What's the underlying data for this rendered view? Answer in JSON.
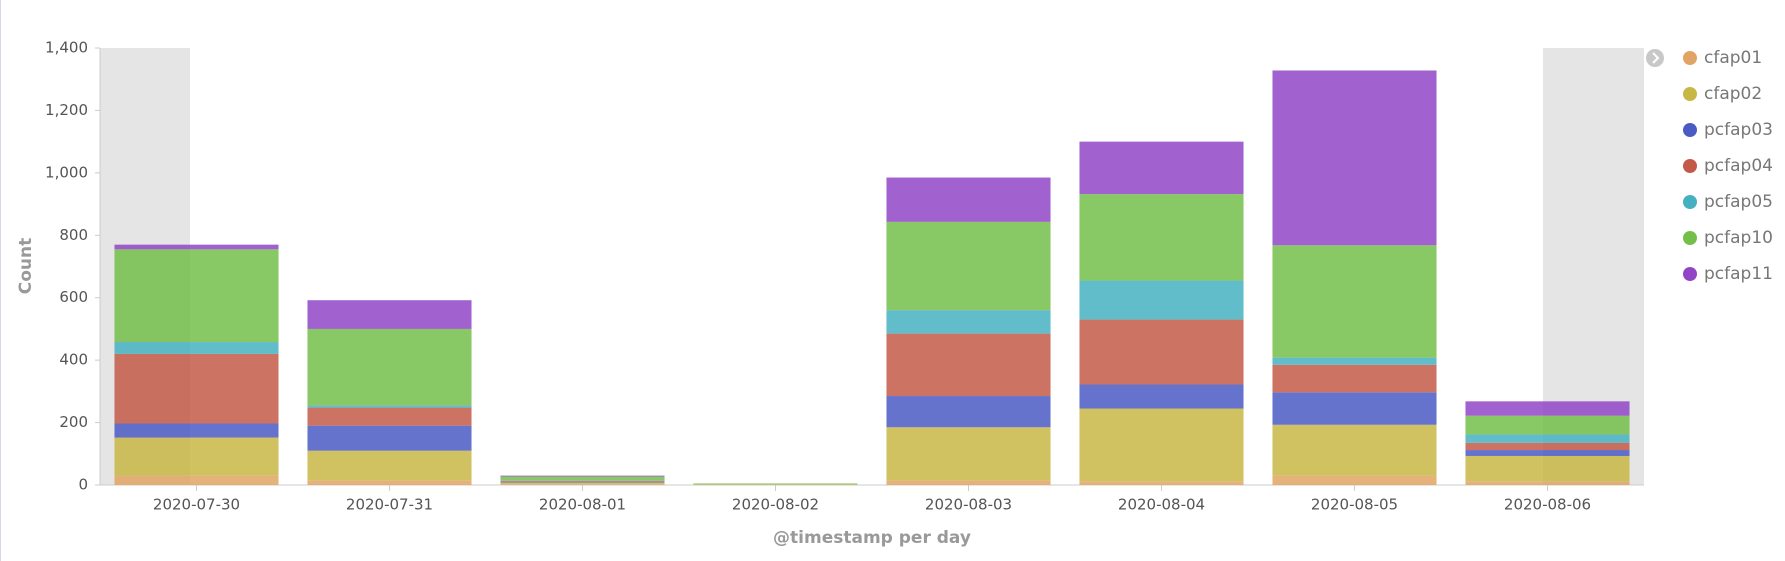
{
  "chart_data": {
    "type": "stacked_bar",
    "y_label": "Count",
    "x_label": "@timestamp per day",
    "categories": [
      "2020-07-30",
      "2020-07-31",
      "2020-08-01",
      "2020-08-02",
      "2020-08-03",
      "2020-08-04",
      "2020-08-05",
      "2020-08-06"
    ],
    "series": [
      {
        "name": "cfap01",
        "color": "#e1a463",
        "values": [
          30,
          15,
          3,
          1,
          15,
          12,
          30,
          12
        ]
      },
      {
        "name": "cfap02",
        "color": "#c8b645",
        "values": [
          122,
          95,
          5,
          1,
          170,
          233,
          163,
          81
        ]
      },
      {
        "name": "pcfap03",
        "color": "#4a5bc4",
        "values": [
          45,
          80,
          2,
          0,
          100,
          77,
          104,
          19
        ]
      },
      {
        "name": "pcfap04",
        "color": "#c35a48",
        "values": [
          223,
          58,
          3,
          0,
          200,
          208,
          88,
          23
        ]
      },
      {
        "name": "pcfap05",
        "color": "#45b1c0",
        "values": [
          38,
          7,
          2,
          0,
          75,
          125,
          23,
          27
        ]
      },
      {
        "name": "pcfap10",
        "color": "#74bf4a",
        "values": [
          297,
          245,
          12,
          3,
          283,
          277,
          360,
          60
        ]
      },
      {
        "name": "pcfap11",
        "color": "#9145c6",
        "values": [
          15,
          92,
          3,
          0,
          142,
          168,
          560,
          46
        ]
      }
    ],
    "ylim": [
      0,
      1400
    ],
    "yticks": [
      0,
      200,
      400,
      600,
      800,
      {
        "value": 1000,
        "label": "1,000"
      },
      {
        "value": 1200,
        "label": "1,200"
      },
      {
        "value": 1400,
        "label": "1,400"
      }
    ],
    "legend": "right"
  }
}
